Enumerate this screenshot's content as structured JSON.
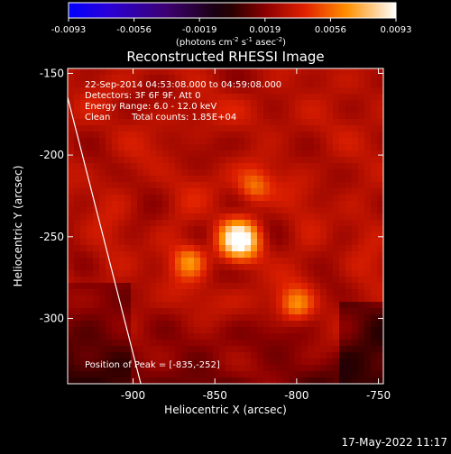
{
  "colorbar": {
    "ticks": [
      "-0.0093",
      "-0.0056",
      "-0.0019",
      "0.0019",
      "0.0056",
      "0.0093"
    ],
    "units_prefix": "(photons cm",
    "units_exp1": "-2",
    "units_mid": " s",
    "units_exp2": "-1",
    "units_mid2": " asec",
    "units_exp3": "-2",
    "units_suffix": ")",
    "range": [
      -0.0093,
      0.0093
    ]
  },
  "chart_data": {
    "type": "heatmap",
    "title": "Reconstructed RHESSI Image",
    "xlabel": "Heliocentric X (arcsec)",
    "ylabel": "Heliocentric Y (arcsec)",
    "xlim": [
      -940,
      -747
    ],
    "ylim": [
      -340,
      -147
    ],
    "xticks": [
      "-900",
      "-850",
      "-800",
      "-750"
    ],
    "yticks": [
      "-150",
      "-200",
      "-250",
      "-300"
    ],
    "xtick_values": [
      -900,
      -850,
      -800,
      -750
    ],
    "ytick_values": [
      -150,
      -200,
      -250,
      -300
    ],
    "annotations": {
      "line1": "22-Sep-2014 04:53:08.000 to 04:59:08.000",
      "line2": "Detectors: 3F 6F 9F, Att 0",
      "line3": "Energy Range: 6.0 - 12.0 keV",
      "line4_a": "Clean",
      "line4_b": "Total counts: 1.85E+04",
      "peak": "Position of Peak = [-835,-252]"
    },
    "peak": [
      -835,
      -252
    ],
    "sources": [
      {
        "x": -835,
        "y": -252,
        "intensity": 1.0
      },
      {
        "x": -865,
        "y": -265,
        "intensity": 0.55
      },
      {
        "x": -826,
        "y": -220,
        "intensity": 0.45
      },
      {
        "x": -800,
        "y": -292,
        "intensity": 0.5
      }
    ],
    "limb": [
      [
        -940,
        -195
      ],
      [
        -895,
        -340
      ]
    ]
  },
  "footer": {
    "timestamp": "17-May-2022 11:17"
  }
}
